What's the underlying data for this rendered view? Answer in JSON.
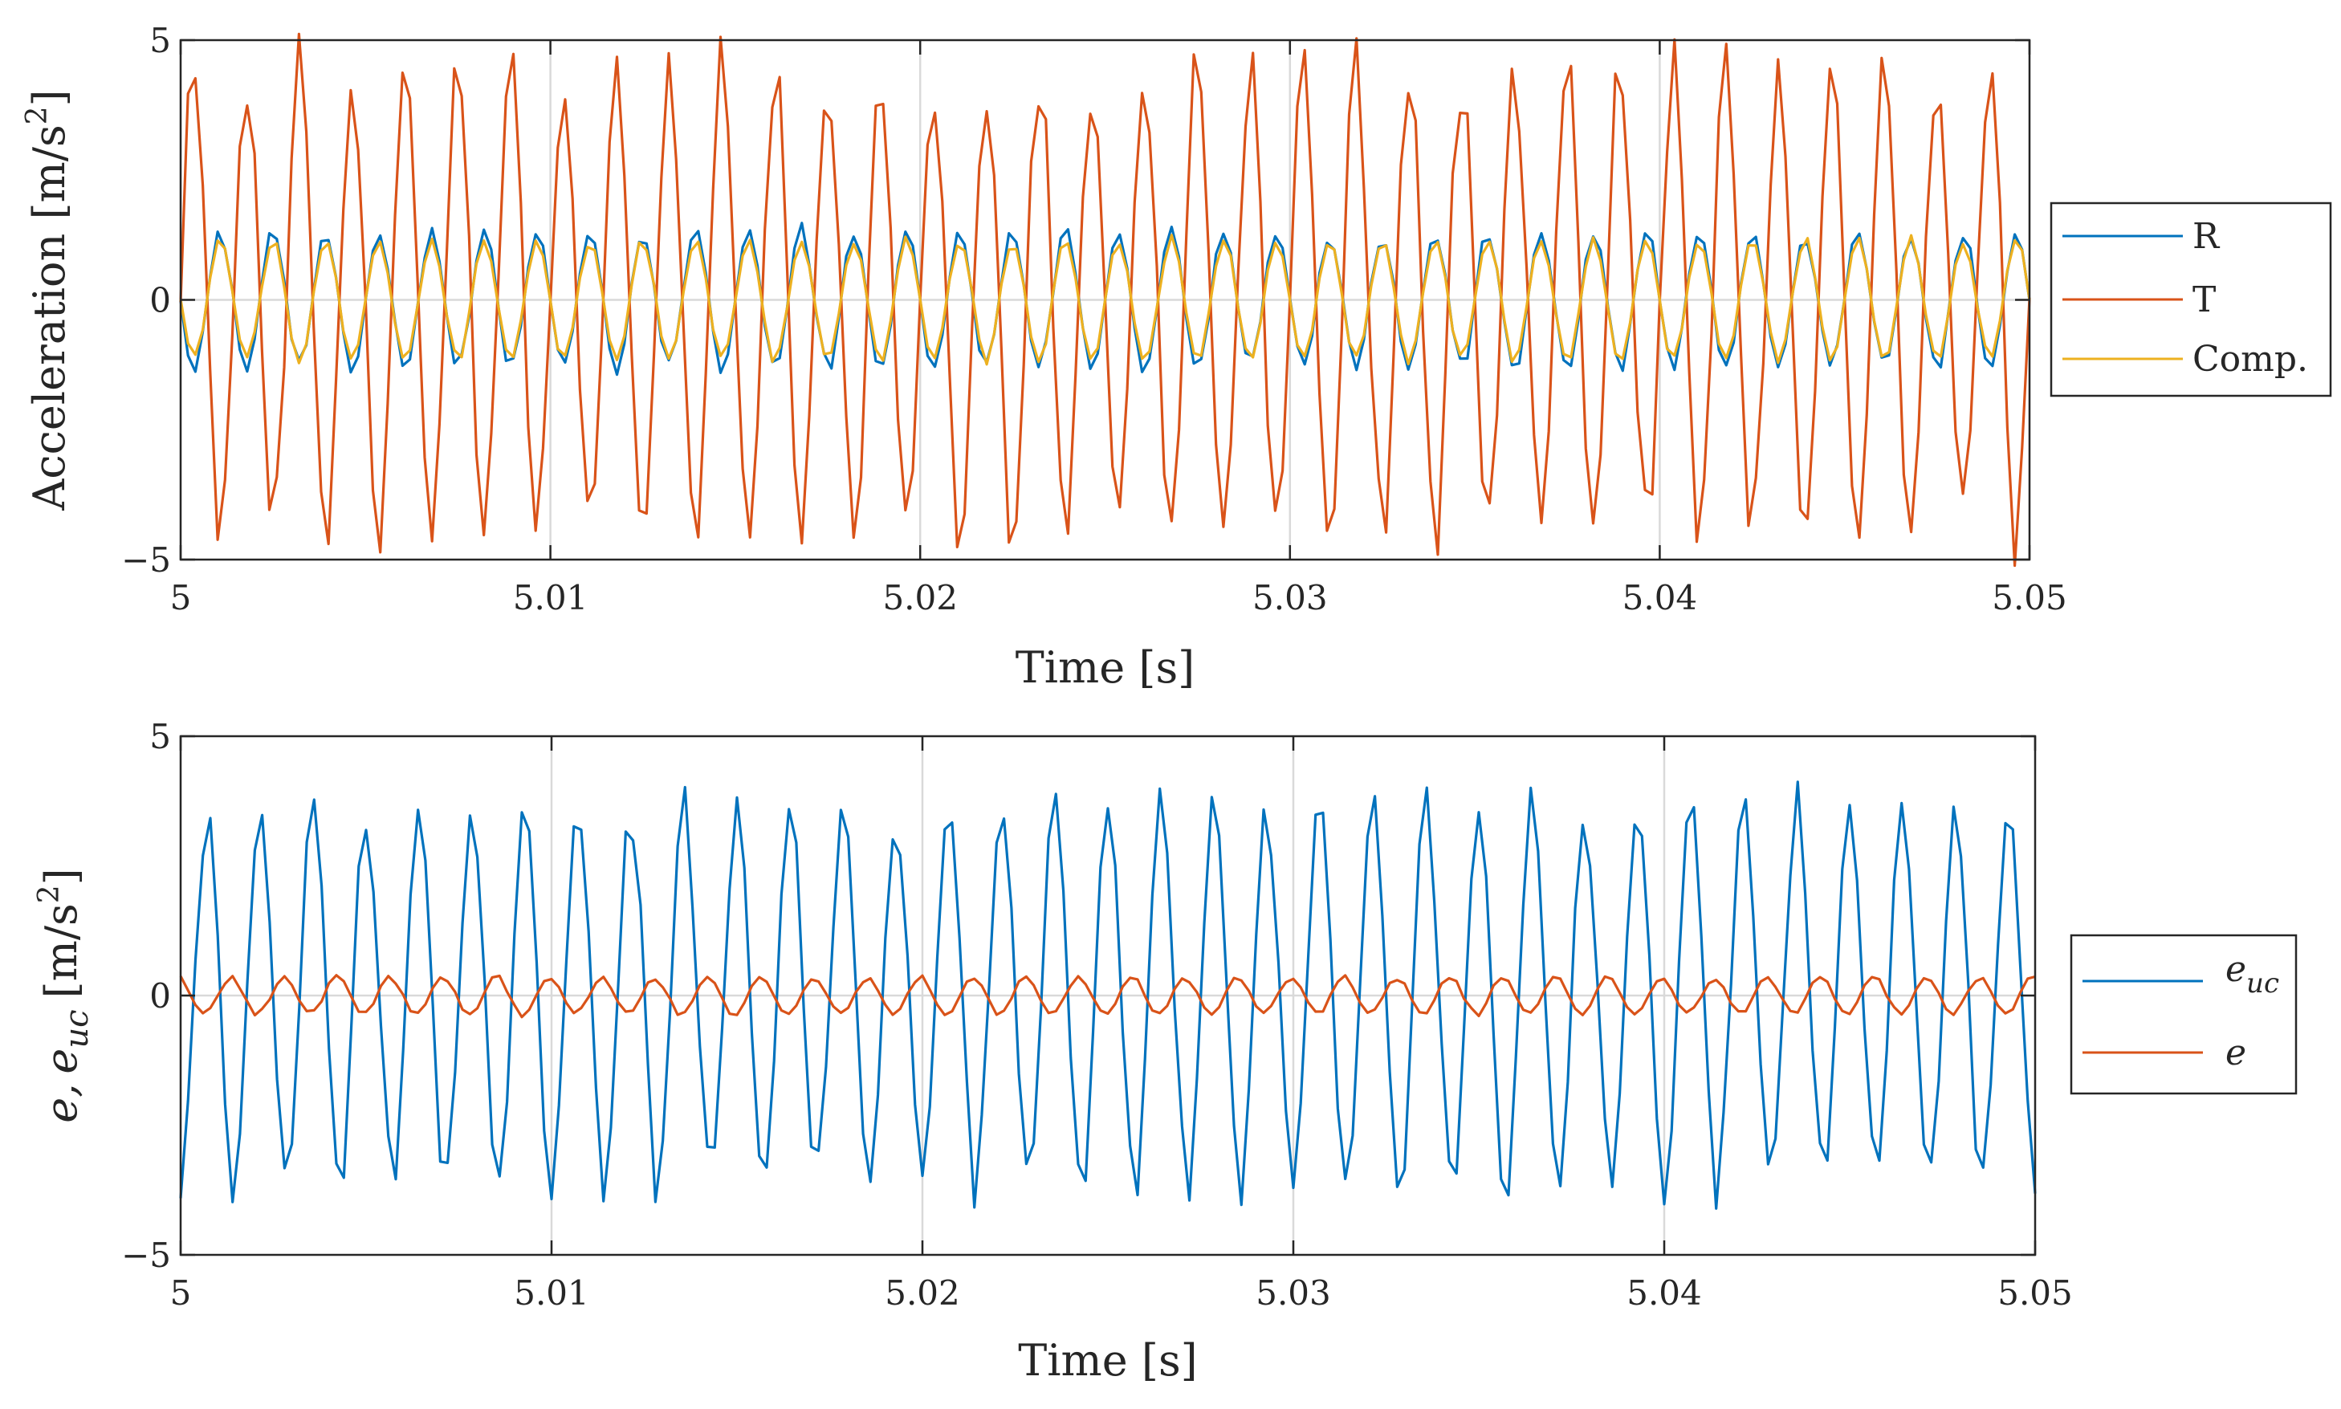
{
  "chart_data": [
    {
      "type": "line",
      "xlabel": "Time [s]",
      "ylabel": "Acceleration [m/s²]",
      "ylabel_parts": {
        "main": "Acceleration [m/s",
        "sup": "2",
        "close": "]"
      },
      "xlim": [
        5,
        5.05
      ],
      "ylim": [
        -5,
        5
      ],
      "xticks": [
        "5",
        "5.01",
        "5.02",
        "5.03",
        "5.04",
        "5.05"
      ],
      "xtick_values": [
        5,
        5.01,
        5.02,
        5.03,
        5.04,
        5.05
      ],
      "yticks": [
        "−5",
        "0",
        "5"
      ],
      "ytick_values": [
        -5,
        0,
        5
      ],
      "grid": true,
      "legend_position": "outside-right",
      "signal": {
        "frequency_hz": 700,
        "samples_per_second": 5000,
        "t_start": 5,
        "t_end": 5.05
      },
      "series": [
        {
          "name": "R",
          "amplitude": 1.3,
          "phase_cycles": 0.5,
          "jitter": 0.12,
          "color": "#0072BD"
        },
        {
          "name": "T",
          "amplitude": 4.4,
          "phase_cycles": 0.0,
          "jitter": 0.18,
          "color": "#D95319"
        },
        {
          "name": "Comp.",
          "amplitude": 1.15,
          "phase_cycles": 0.5,
          "jitter": 0.08,
          "color": "#EDB120"
        }
      ]
    },
    {
      "type": "line",
      "xlabel": "Time [s]",
      "ylabel": "e, e_uc [m/s²]",
      "ylabel_parts": {
        "e": "e,",
        "euc": "e",
        "sub": "uc",
        "unit": "[m/s",
        "sup": "2",
        "close": "]"
      },
      "xlim": [
        5,
        5.05
      ],
      "ylim": [
        -5,
        5
      ],
      "xticks": [
        "5",
        "5.01",
        "5.02",
        "5.03",
        "5.04",
        "5.05"
      ],
      "xtick_values": [
        5,
        5.01,
        5.02,
        5.03,
        5.04,
        5.05
      ],
      "yticks": [
        "−5",
        "0",
        "5"
      ],
      "ytick_values": [
        -5,
        0,
        5
      ],
      "grid": true,
      "legend_position": "outside-right",
      "signal": {
        "frequency_hz": 700,
        "samples_per_second": 5000,
        "t_start": 5,
        "t_end": 5.05
      },
      "series": [
        {
          "name": "e_uc",
          "label_main": "e",
          "label_sub": "uc",
          "amplitude": 3.6,
          "phase_cycles": 0.75,
          "jitter": 0.15,
          "color": "#0072BD"
        },
        {
          "name": "e",
          "label_main": "e",
          "amplitude": 0.35,
          "phase_cycles": 0.3,
          "jitter": 0.12,
          "color": "#D95319"
        }
      ]
    }
  ]
}
